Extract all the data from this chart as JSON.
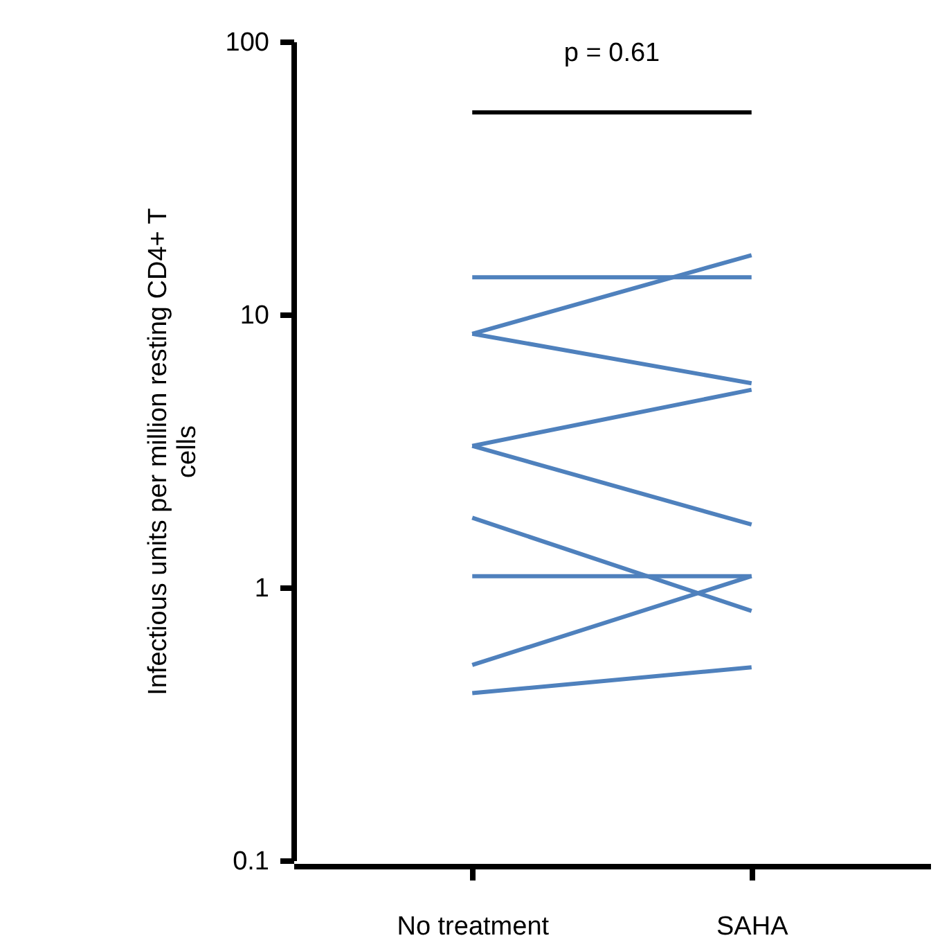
{
  "chart_data": {
    "type": "line",
    "ylabel": "Infectious units per million resting CD4+ T cells",
    "categories": [
      "No treatment",
      "SAHA"
    ],
    "log": "y",
    "ylim": [
      0.1,
      100
    ],
    "yticks": [
      0.1,
      1,
      10,
      100
    ],
    "grid": false,
    "legend": false,
    "marker": "none",
    "line_style": "solid",
    "annotations": [
      "p = 0.61"
    ],
    "series": [
      {
        "color": "#4f81bd",
        "values": [
          13.7,
          13.7
        ]
      },
      {
        "color": "#4f81bd",
        "values": [
          8.5,
          16.5
        ]
      },
      {
        "color": "#4f81bd",
        "values": [
          8.5,
          5.6
        ]
      },
      {
        "color": "#4f81bd",
        "values": [
          3.3,
          5.3
        ]
      },
      {
        "color": "#4f81bd",
        "values": [
          3.3,
          1.7
        ]
      },
      {
        "color": "#4f81bd",
        "values": [
          1.8,
          0.82
        ]
      },
      {
        "color": "#4f81bd",
        "values": [
          1.1,
          1.1
        ]
      },
      {
        "color": "#4f81bd",
        "values": [
          0.52,
          1.1
        ]
      },
      {
        "color": "#4f81bd",
        "values": [
          0.41,
          0.51
        ]
      },
      {
        "color": "#000000",
        "values": [
          55,
          55
        ]
      }
    ]
  }
}
